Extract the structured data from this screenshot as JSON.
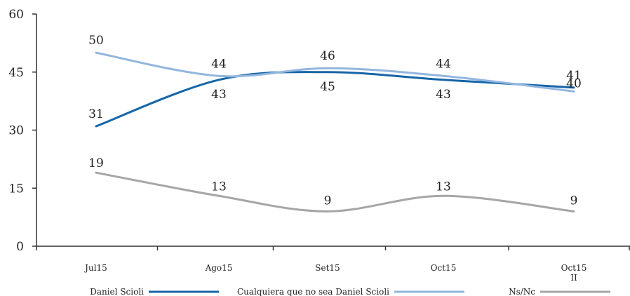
{
  "chart_data": {
    "type": "line",
    "title": "",
    "xlabel": "",
    "ylabel": "",
    "ylim": [
      0,
      60
    ],
    "yticks": [
      0,
      15,
      30,
      45,
      60
    ],
    "categories": [
      [
        "Jul15"
      ],
      [
        "Ago15"
      ],
      [
        "Set15"
      ],
      [
        "Oct15"
      ],
      [
        "Oct15",
        "II"
      ]
    ],
    "grid": false,
    "legend_position": "bottom",
    "series": [
      {
        "name": "Daniel Scioli",
        "color": "#1565a8",
        "values": [
          31,
          43,
          45,
          43,
          41
        ]
      },
      {
        "name": "Cualquiera que no sea Daniel Scioli",
        "color": "#92b6de",
        "values": [
          50,
          44,
          46,
          44,
          40
        ]
      },
      {
        "name": "Ns/Nc",
        "color": "#a6a6a6",
        "values": [
          19,
          13,
          9,
          13,
          9
        ]
      }
    ],
    "data_labels": [
      [
        "31",
        "43",
        "45",
        "43",
        "41"
      ],
      [
        "50",
        "44",
        "46",
        "44",
        "40"
      ],
      [
        "19",
        "13",
        "9",
        "13",
        "9"
      ]
    ]
  }
}
